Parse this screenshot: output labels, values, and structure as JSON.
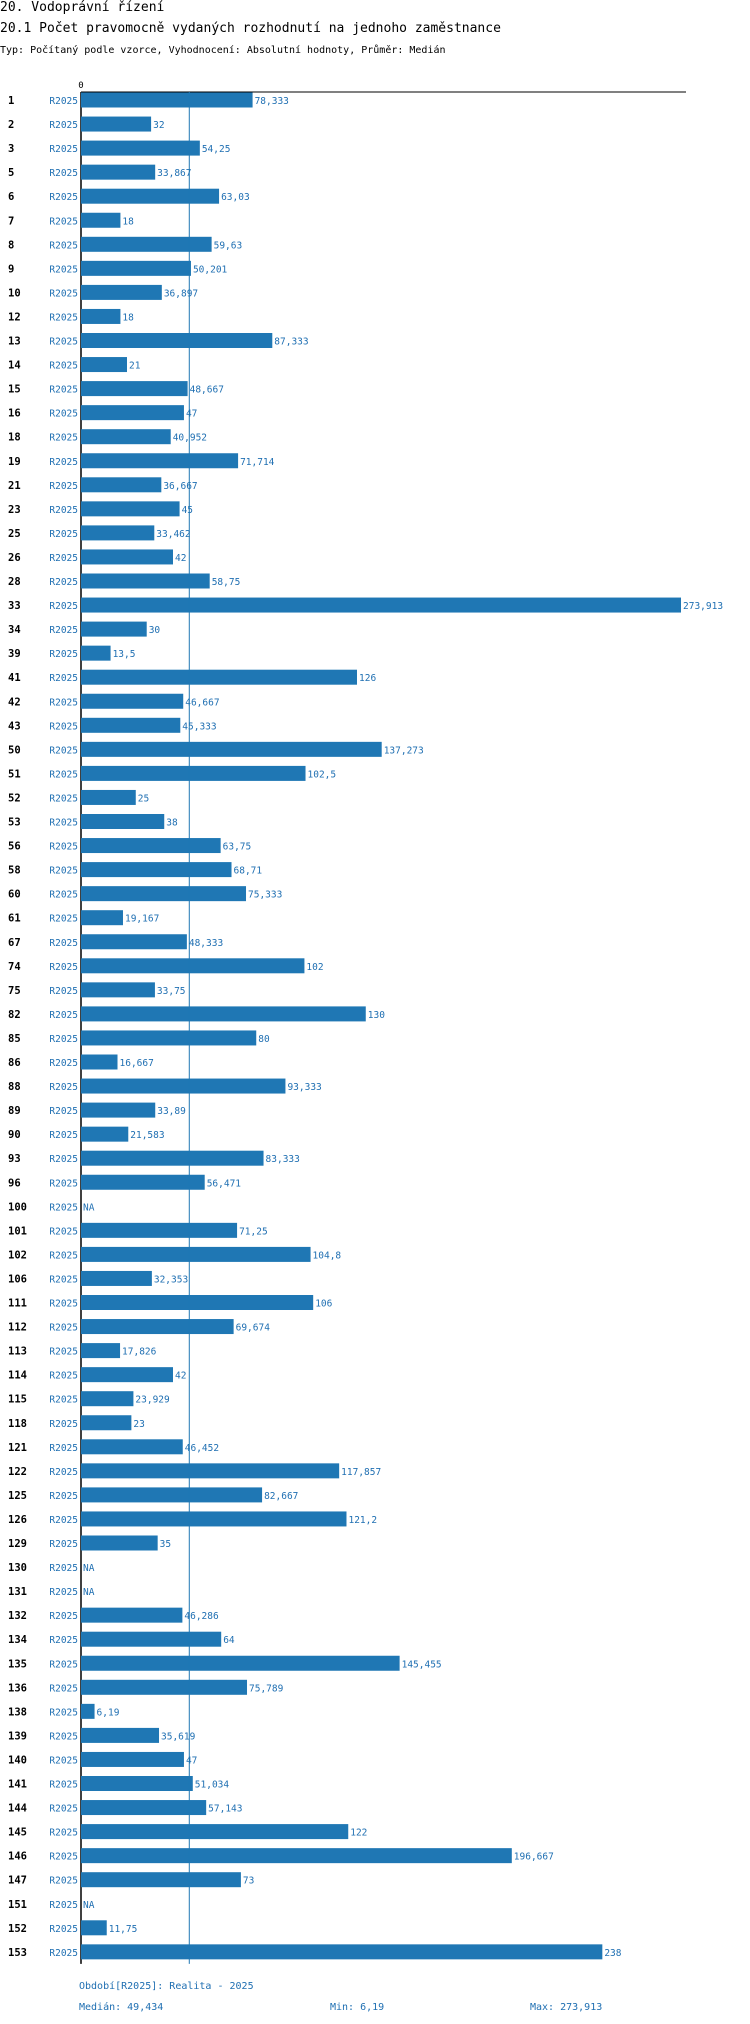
{
  "header": {
    "title": "20. Vodoprávní řízení",
    "subtitle": "20.1 Počet pravomocně vydaných rozhodnutí na jednoho zaměstnance",
    "meta": "Typ: Počítaný podle vzorce, Vyhodnocení: Absolutní hodnoty, Průměr: Medián"
  },
  "chart_data": {
    "type": "bar",
    "orientation": "horizontal",
    "title": "20.1 Počet pravomocně vydaných rozhodnutí na jednoho zaměstnance",
    "axis_zero_label": "0",
    "series_name": "R2025",
    "xlim": [
      0,
      273.913
    ],
    "reference_line": {
      "name": "Medián",
      "value": 49.434
    },
    "bar_color": "#1f77b4",
    "rows": [
      {
        "id": "1",
        "value": 78.333,
        "label": "78,333"
      },
      {
        "id": "2",
        "value": 32,
        "label": "32"
      },
      {
        "id": "3",
        "value": 54.25,
        "label": "54,25"
      },
      {
        "id": "5",
        "value": 33.867,
        "label": "33,867"
      },
      {
        "id": "6",
        "value": 63.03,
        "label": "63,03"
      },
      {
        "id": "7",
        "value": 18,
        "label": "18"
      },
      {
        "id": "8",
        "value": 59.63,
        "label": "59,63"
      },
      {
        "id": "9",
        "value": 50.201,
        "label": "50,201"
      },
      {
        "id": "10",
        "value": 36.897,
        "label": "36,897"
      },
      {
        "id": "12",
        "value": 18,
        "label": "18"
      },
      {
        "id": "13",
        "value": 87.333,
        "label": "87,333"
      },
      {
        "id": "14",
        "value": 21,
        "label": "21"
      },
      {
        "id": "15",
        "value": 48.667,
        "label": "48,667"
      },
      {
        "id": "16",
        "value": 47,
        "label": "47"
      },
      {
        "id": "18",
        "value": 40.952,
        "label": "40,952"
      },
      {
        "id": "19",
        "value": 71.714,
        "label": "71,714"
      },
      {
        "id": "21",
        "value": 36.667,
        "label": "36,667"
      },
      {
        "id": "23",
        "value": 45,
        "label": "45"
      },
      {
        "id": "25",
        "value": 33.462,
        "label": "33,462"
      },
      {
        "id": "26",
        "value": 42,
        "label": "42"
      },
      {
        "id": "28",
        "value": 58.75,
        "label": "58,75"
      },
      {
        "id": "33",
        "value": 273.913,
        "label": "273,913"
      },
      {
        "id": "34",
        "value": 30,
        "label": "30"
      },
      {
        "id": "39",
        "value": 13.5,
        "label": "13,5"
      },
      {
        "id": "41",
        "value": 126,
        "label": "126"
      },
      {
        "id": "42",
        "value": 46.667,
        "label": "46,667"
      },
      {
        "id": "43",
        "value": 45.333,
        "label": "45,333"
      },
      {
        "id": "50",
        "value": 137.273,
        "label": "137,273"
      },
      {
        "id": "51",
        "value": 102.5,
        "label": "102,5"
      },
      {
        "id": "52",
        "value": 25,
        "label": "25"
      },
      {
        "id": "53",
        "value": 38,
        "label": "38"
      },
      {
        "id": "56",
        "value": 63.75,
        "label": "63,75"
      },
      {
        "id": "58",
        "value": 68.71,
        "label": "68,71"
      },
      {
        "id": "60",
        "value": 75.333,
        "label": "75,333"
      },
      {
        "id": "61",
        "value": 19.167,
        "label": "19,167"
      },
      {
        "id": "67",
        "value": 48.333,
        "label": "48,333"
      },
      {
        "id": "74",
        "value": 102,
        "label": "102"
      },
      {
        "id": "75",
        "value": 33.75,
        "label": "33,75"
      },
      {
        "id": "82",
        "value": 130,
        "label": "130"
      },
      {
        "id": "85",
        "value": 80,
        "label": "80"
      },
      {
        "id": "86",
        "value": 16.667,
        "label": "16,667"
      },
      {
        "id": "88",
        "value": 93.333,
        "label": "93,333"
      },
      {
        "id": "89",
        "value": 33.89,
        "label": "33,89"
      },
      {
        "id": "90",
        "value": 21.583,
        "label": "21,583"
      },
      {
        "id": "93",
        "value": 83.333,
        "label": "83,333"
      },
      {
        "id": "96",
        "value": 56.471,
        "label": "56,471"
      },
      {
        "id": "100",
        "value": null,
        "label": "NA"
      },
      {
        "id": "101",
        "value": 71.25,
        "label": "71,25"
      },
      {
        "id": "102",
        "value": 104.8,
        "label": "104,8"
      },
      {
        "id": "106",
        "value": 32.353,
        "label": "32,353"
      },
      {
        "id": "111",
        "value": 106,
        "label": "106"
      },
      {
        "id": "112",
        "value": 69.674,
        "label": "69,674"
      },
      {
        "id": "113",
        "value": 17.826,
        "label": "17,826"
      },
      {
        "id": "114",
        "value": 42,
        "label": "42"
      },
      {
        "id": "115",
        "value": 23.929,
        "label": "23,929"
      },
      {
        "id": "118",
        "value": 23,
        "label": "23"
      },
      {
        "id": "121",
        "value": 46.452,
        "label": "46,452"
      },
      {
        "id": "122",
        "value": 117.857,
        "label": "117,857"
      },
      {
        "id": "125",
        "value": 82.667,
        "label": "82,667"
      },
      {
        "id": "126",
        "value": 121.2,
        "label": "121,2"
      },
      {
        "id": "129",
        "value": 35,
        "label": "35"
      },
      {
        "id": "130",
        "value": null,
        "label": "NA"
      },
      {
        "id": "131",
        "value": null,
        "label": "NA"
      },
      {
        "id": "132",
        "value": 46.286,
        "label": "46,286"
      },
      {
        "id": "134",
        "value": 64,
        "label": "64"
      },
      {
        "id": "135",
        "value": 145.455,
        "label": "145,455"
      },
      {
        "id": "136",
        "value": 75.789,
        "label": "75,789"
      },
      {
        "id": "138",
        "value": 6.19,
        "label": "6,19"
      },
      {
        "id": "139",
        "value": 35.619,
        "label": "35,619"
      },
      {
        "id": "140",
        "value": 47,
        "label": "47"
      },
      {
        "id": "141",
        "value": 51.034,
        "label": "51,034"
      },
      {
        "id": "144",
        "value": 57.143,
        "label": "57,143"
      },
      {
        "id": "145",
        "value": 122,
        "label": "122"
      },
      {
        "id": "146",
        "value": 196.667,
        "label": "196,667"
      },
      {
        "id": "147",
        "value": 73,
        "label": "73"
      },
      {
        "id": "151",
        "value": null,
        "label": "NA"
      },
      {
        "id": "152",
        "value": 11.75,
        "label": "11,75"
      },
      {
        "id": "153",
        "value": 238,
        "label": "238"
      }
    ]
  },
  "footer": {
    "period": "Období[R2025]: Realita - 2025",
    "median": "Medián: 49,434",
    "min": "Min: 6,19",
    "max": "Max: 273,913"
  }
}
